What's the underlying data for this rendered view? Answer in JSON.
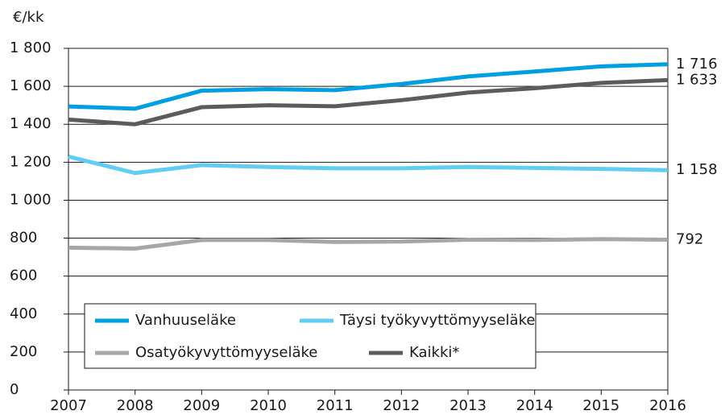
{
  "chart_data": {
    "type": "line",
    "y_label": "€/kk",
    "x": [
      2007,
      2008,
      2009,
      2010,
      2011,
      2012,
      2013,
      2014,
      2015,
      2016
    ],
    "xlim": [
      2007,
      2016
    ],
    "xticks": [
      2007,
      2008,
      2009,
      2010,
      2011,
      2012,
      2013,
      2014,
      2015,
      2016
    ],
    "ylim": [
      0,
      1800
    ],
    "yticks": [
      0,
      200,
      400,
      600,
      800,
      {
        "value": 1000,
        "label": "1 000"
      },
      {
        "value": 1200,
        "label": "1 200"
      },
      {
        "value": 1400,
        "label": "1 400"
      },
      {
        "value": 1600,
        "label": "1 600"
      },
      {
        "value": 1800,
        "label": "1 800"
      }
    ],
    "grid": true,
    "legend": "lower left",
    "series": [
      {
        "name": "Vanhuuseläke",
        "color": "#009fe3",
        "values": [
          1494,
          1482,
          1577,
          1585,
          1580,
          1612,
          1652,
          1678,
          1705,
          1716
        ],
        "value_labels": [
          null,
          null,
          null,
          null,
          null,
          null,
          null,
          null,
          null,
          "1 716"
        ]
      },
      {
        "name": "Täysi työkyvyttömyyseläke",
        "color": "#62cdf3",
        "values": [
          1230,
          1143,
          1185,
          1175,
          1168,
          1168,
          1175,
          1170,
          1165,
          1158
        ],
        "value_labels": [
          null,
          null,
          null,
          null,
          null,
          null,
          null,
          null,
          null,
          "1 158"
        ]
      },
      {
        "name": "Osatyökyvyttömyyseläke",
        "color": "#a7a7aa",
        "values": [
          750,
          745,
          790,
          790,
          780,
          782,
          792,
          790,
          795,
          792
        ],
        "value_labels": [
          null,
          null,
          null,
          null,
          null,
          null,
          null,
          null,
          null,
          "792"
        ]
      },
      {
        "name": "Kaikki*",
        "color": "#5c5c5e",
        "values": [
          1425,
          1400,
          1490,
          1500,
          1495,
          1527,
          1567,
          1590,
          1618,
          1633
        ],
        "value_labels": [
          null,
          null,
          null,
          null,
          null,
          null,
          null,
          null,
          null,
          "1 633"
        ]
      }
    ]
  }
}
